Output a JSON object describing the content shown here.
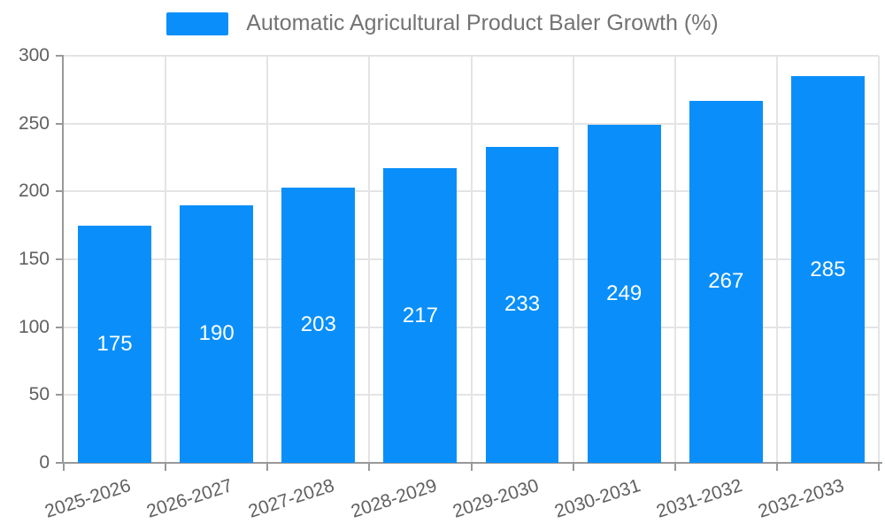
{
  "legend": {
    "label": "Automatic Agricultural Product Baler Growth (%)"
  },
  "chart_data": {
    "type": "bar",
    "title": "Automatic Agricultural Product Baler Growth (%)",
    "categories": [
      "2025-2026",
      "2026-2027",
      "2027-2028",
      "2028-2029",
      "2029-2030",
      "2030-2031",
      "2031-2032",
      "2032-2033"
    ],
    "values": [
      175,
      190,
      203,
      217,
      233,
      249,
      267,
      285
    ],
    "xlabel": "",
    "ylabel": "",
    "ylim": [
      0,
      300
    ],
    "yticks": [
      0,
      50,
      100,
      150,
      200,
      250,
      300
    ],
    "grid": true,
    "legend_position": "top-center",
    "colors": {
      "bar": "#0a8ffa",
      "value_label": "#ffffff",
      "axis": "#999999",
      "grid": "#e4e4e4",
      "tick_label": "#606060",
      "legend_text": "#737373"
    }
  }
}
